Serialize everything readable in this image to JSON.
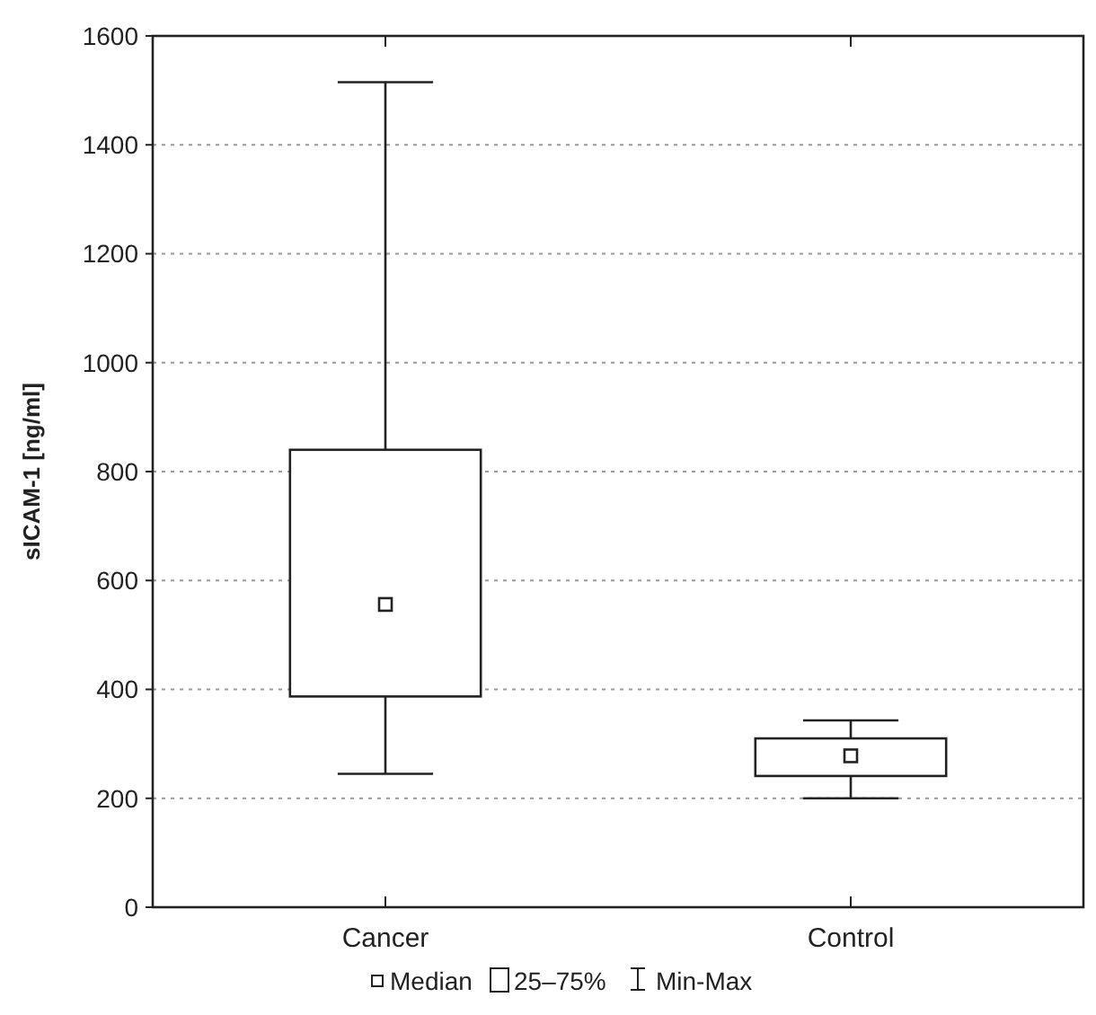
{
  "chart_data": {
    "type": "box",
    "ylabel": "sICAM-1 [ng/ml]",
    "categories": [
      "Cancer",
      "Control"
    ],
    "boxes": [
      {
        "low": 245,
        "q1": 387,
        "median": 556,
        "q3": 840,
        "high": 1515
      },
      {
        "low": 200,
        "q1": 241,
        "median": 278,
        "q3": 310,
        "high": 343
      }
    ],
    "color": "#222222",
    "ylim": [
      0,
      1600
    ],
    "yticks": [
      0,
      200,
      400,
      600,
      800,
      1000,
      1200,
      1400,
      1600
    ],
    "grid": "y",
    "annotations": [
      "Median",
      "25–75%",
      "Min-Max"
    ]
  }
}
